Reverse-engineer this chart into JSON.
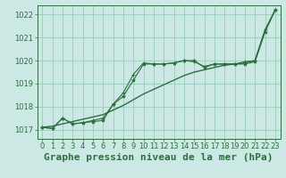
{
  "xlabel": "Graphe pression niveau de la mer (hPa)",
  "ylabel": "",
  "bg_color": "#cce8e4",
  "grid_color": "#99ccbb",
  "line_color": "#2d6e3e",
  "xlim": [
    -0.5,
    23.5
  ],
  "ylim": [
    1016.6,
    1022.4
  ],
  "yticks": [
    1017,
    1018,
    1019,
    1020,
    1021,
    1022
  ],
  "xticks": [
    0,
    1,
    2,
    3,
    4,
    5,
    6,
    7,
    8,
    9,
    10,
    11,
    12,
    13,
    14,
    15,
    16,
    17,
    18,
    19,
    20,
    21,
    22,
    23
  ],
  "line1_x": [
    0,
    1,
    2,
    3,
    4,
    5,
    6,
    7,
    8,
    9,
    10,
    11,
    12,
    13,
    14,
    15,
    16,
    17,
    18,
    19,
    20,
    21,
    22,
    23
  ],
  "line1_y": [
    1017.1,
    1017.05,
    1017.5,
    1017.25,
    1017.3,
    1017.35,
    1017.4,
    1018.1,
    1018.45,
    1019.15,
    1019.85,
    1019.85,
    1019.85,
    1019.9,
    1020.0,
    1020.0,
    1019.7,
    1019.85,
    1019.85,
    1019.85,
    1019.85,
    1019.95,
    1021.25,
    1022.2
  ],
  "line2_x": [
    0,
    1,
    2,
    3,
    4,
    5,
    6,
    7,
    8,
    9,
    10,
    11,
    12,
    13,
    14,
    15,
    16,
    17,
    18,
    19,
    20,
    21,
    22,
    23
  ],
  "line2_y": [
    1017.1,
    1017.05,
    1017.5,
    1017.25,
    1017.3,
    1017.4,
    1017.5,
    1018.1,
    1018.6,
    1019.4,
    1019.9,
    1019.85,
    1019.85,
    1019.9,
    1020.0,
    1019.95,
    1019.75,
    1019.85,
    1019.85,
    1019.85,
    1019.95,
    1020.0,
    1021.35,
    1022.2
  ],
  "line3_x": [
    0,
    1,
    2,
    3,
    4,
    5,
    6,
    7,
    8,
    9,
    10,
    11,
    12,
    13,
    14,
    15,
    16,
    17,
    18,
    19,
    20,
    21,
    22,
    23
  ],
  "line3_y": [
    1017.1,
    1017.15,
    1017.25,
    1017.35,
    1017.45,
    1017.55,
    1017.65,
    1017.85,
    1018.05,
    1018.3,
    1018.55,
    1018.75,
    1018.95,
    1019.15,
    1019.35,
    1019.5,
    1019.6,
    1019.7,
    1019.8,
    1019.85,
    1019.9,
    1020.0,
    1021.3,
    1022.2
  ],
  "xlabel_fontsize": 8,
  "tick_fontsize": 6,
  "xlabel_color": "#2d6e3e",
  "tick_color": "#2d6e3e",
  "figsize": [
    3.2,
    2.0
  ],
  "dpi": 100
}
